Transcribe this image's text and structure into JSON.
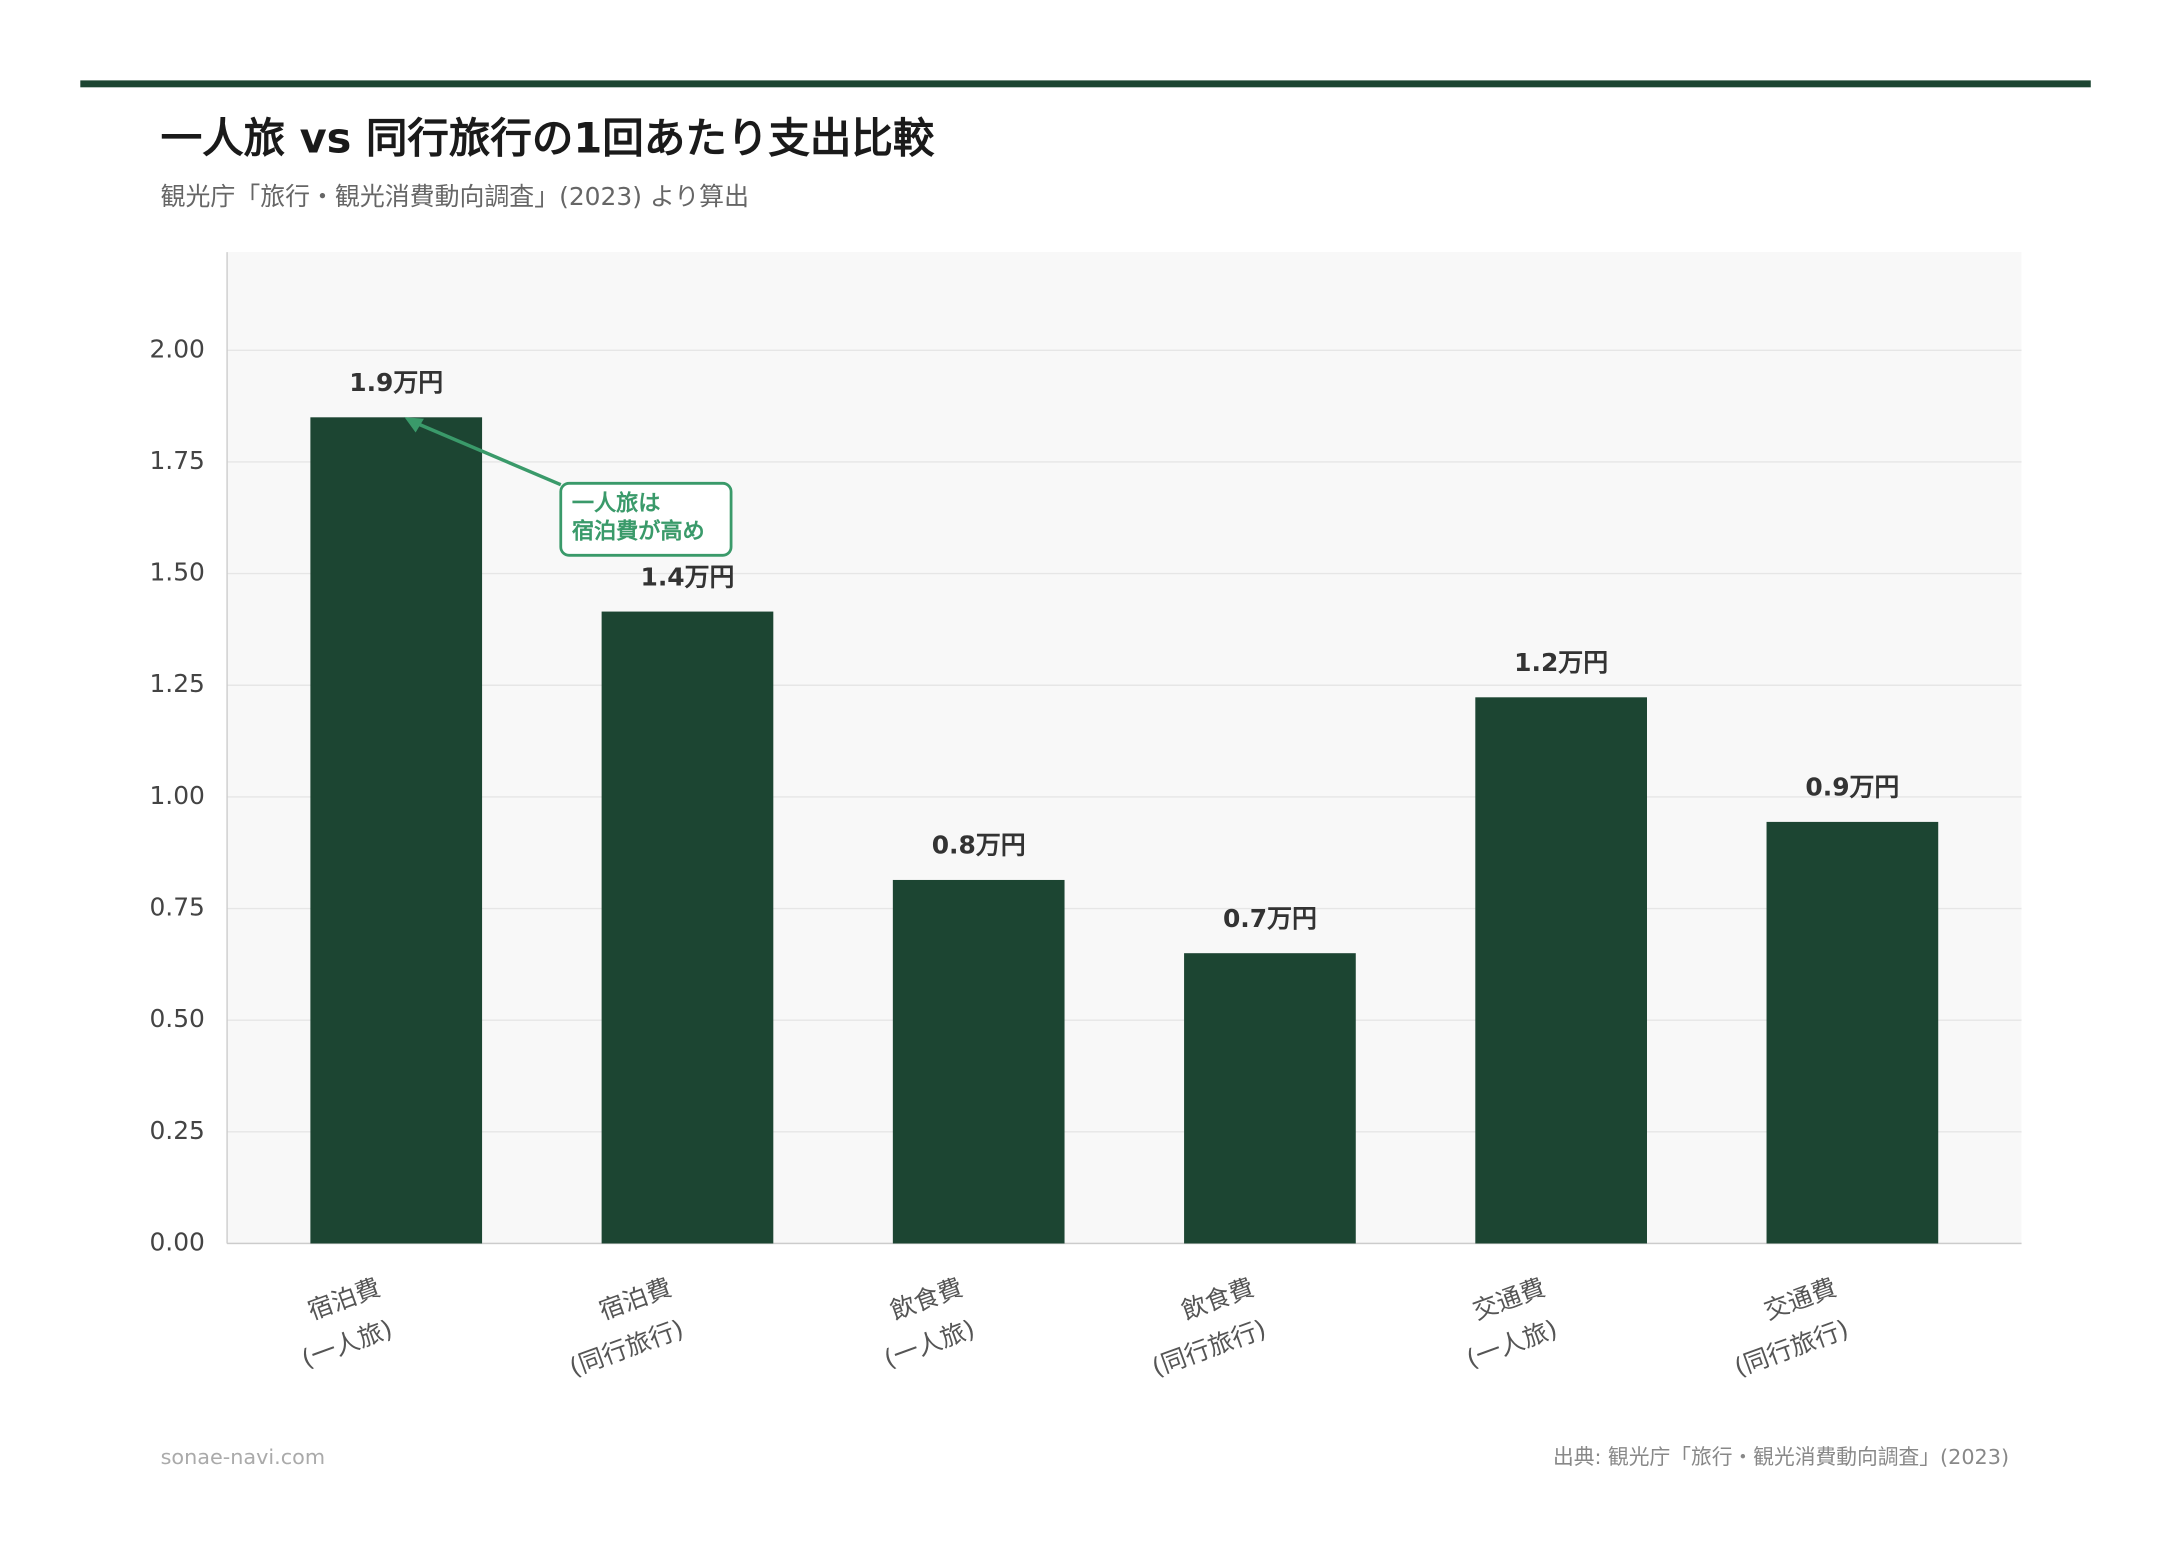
{
  "chart_data": {
    "type": "bar",
    "title": "一人旅 vs 同行旅行の1回あたり支出比較",
    "subtitle": "観光庁「旅行・観光消費動向調査」(2023) より算出",
    "categories": [
      [
        "宿泊費",
        "(一人旅)"
      ],
      [
        "宿泊費",
        "(同行旅行)"
      ],
      [
        "飲食費",
        "(一人旅)"
      ],
      [
        "飲食費",
        "(同行旅行)"
      ],
      [
        "交通費",
        "(一人旅)"
      ],
      [
        "交通費",
        "(同行旅行)"
      ]
    ],
    "values": [
      1.85,
      1.415,
      0.814,
      0.65,
      1.223,
      0.944
    ],
    "value_labels": [
      "1.9万円",
      "1.4万円",
      "0.8万円",
      "0.7万円",
      "1.2万円",
      "0.9万円"
    ],
    "color": "#1c4532",
    "ylim": [
      0,
      2.22
    ],
    "yticks": [
      {
        "value": 0,
        "label": "0.00"
      },
      {
        "value": 0.25,
        "label": "0.25"
      },
      {
        "value": 0.5,
        "label": "0.50"
      },
      {
        "value": 0.75,
        "label": "0.75"
      },
      {
        "value": 1,
        "label": "1.00"
      },
      {
        "value": 1.25,
        "label": "1.25"
      },
      {
        "value": 1.5,
        "label": "1.50"
      },
      {
        "value": 1.75,
        "label": "1.75"
      },
      {
        "value": 2,
        "label": "2.00"
      }
    ],
    "grid": true,
    "annotation": {
      "lines": [
        "一人旅は",
        "宿泊費が高め"
      ],
      "color": "#3a9a6a"
    },
    "footer_left": "sonae-navi.com",
    "footer_right": "出典: 観光庁「旅行・観光消費動向調査」(2023)"
  }
}
